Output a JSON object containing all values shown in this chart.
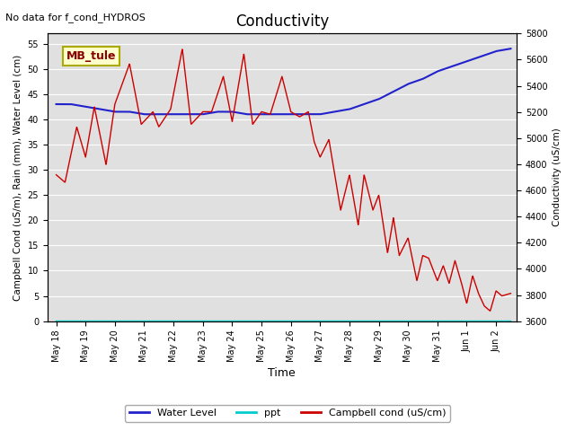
{
  "title": "Conductivity",
  "top_left_text": "No data for f_cond_HYDROS",
  "xlabel": "Time",
  "ylabel_left": "Campbell Cond (uS/m), Rain (mm), Water Level (cm)",
  "ylabel_right": "Conductivity (uS/cm)",
  "ylim_left": [
    0,
    57
  ],
  "ylim_right": [
    3600,
    5800
  ],
  "yticks_left": [
    0,
    5,
    10,
    15,
    20,
    25,
    30,
    35,
    40,
    45,
    50,
    55
  ],
  "yticks_right": [
    3600,
    3800,
    4000,
    4200,
    4400,
    4600,
    4800,
    5000,
    5200,
    5400,
    5600,
    5800
  ],
  "bg_color": "#e8e8e8",
  "legend_items": [
    "Water Level",
    "ppt",
    "Campbell cond (uS/cm)"
  ],
  "water_level_color": "#2222cc",
  "campbell_color": "#cc0000",
  "ppt_color": "#00cccc",
  "annotation_text": "MB_tule",
  "annotation_facecolor": "#ffffcc",
  "annotation_edgecolor": "#aaaa00",
  "annotation_textcolor": "#880000",
  "grid_color": "#ffffff",
  "fig_facecolor": "#ffffff",
  "ax_facecolor": "#e0e0e0",
  "title_fontsize": 12,
  "label_fontsize": 7.5,
  "tick_fontsize": 7,
  "legend_fontsize": 8,
  "day_labels": [
    "May 18",
    "May 19",
    "May 20",
    "May 21",
    "May 22",
    "May 23",
    "May 24",
    "May 25",
    "May 26",
    "May 27",
    "May 28",
    "May 29",
    "May 30",
    "May 31",
    "Jun 1",
    "Jun 2"
  ],
  "campbell_keypoints_t": [
    0.0,
    0.3,
    0.7,
    1.0,
    1.3,
    1.7,
    2.0,
    2.5,
    2.9,
    3.3,
    3.5,
    3.9,
    4.3,
    4.6,
    5.0,
    5.3,
    5.7,
    6.0,
    6.4,
    6.7,
    7.0,
    7.3,
    7.7,
    8.0,
    8.3,
    8.6,
    8.8,
    9.0,
    9.3,
    9.7,
    10.0,
    10.3,
    10.5,
    10.8,
    11.0,
    11.3,
    11.5,
    11.7,
    12.0,
    12.3,
    12.5,
    12.7,
    13.0,
    13.2,
    13.4,
    13.6,
    13.8,
    14.0,
    14.2,
    14.4,
    14.6,
    14.8,
    15.0,
    15.2,
    15.5
  ],
  "campbell_keypoints_v": [
    29.0,
    27.5,
    38.5,
    32.5,
    42.5,
    31.0,
    43.0,
    51.0,
    39.0,
    41.5,
    38.5,
    42.0,
    54.0,
    39.0,
    41.5,
    41.5,
    48.5,
    39.5,
    53.0,
    39.0,
    41.5,
    41.0,
    48.5,
    41.5,
    40.5,
    41.5,
    35.5,
    32.5,
    36.0,
    22.0,
    29.0,
    19.0,
    29.0,
    22.0,
    25.0,
    13.5,
    20.5,
    13.0,
    16.5,
    8.0,
    13.0,
    12.5,
    8.0,
    11.0,
    7.5,
    12.0,
    8.0,
    3.5,
    9.0,
    5.5,
    3.0,
    2.0,
    6.0,
    5.0,
    5.5
  ],
  "water_keypoints_t": [
    0.0,
    0.5,
    1.0,
    1.5,
    2.0,
    2.5,
    3.0,
    3.5,
    4.0,
    4.5,
    5.0,
    5.5,
    6.0,
    6.5,
    7.0,
    7.5,
    8.0,
    8.5,
    9.0,
    9.5,
    10.0,
    10.5,
    11.0,
    11.5,
    12.0,
    12.5,
    13.0,
    13.5,
    14.0,
    14.5,
    15.0,
    15.5
  ],
  "water_keypoints_v": [
    43.0,
    43.0,
    42.5,
    42.0,
    41.5,
    41.5,
    41.0,
    41.0,
    41.0,
    41.0,
    41.0,
    41.5,
    41.5,
    41.0,
    41.0,
    41.0,
    41.0,
    41.0,
    41.0,
    41.5,
    42.0,
    43.0,
    44.0,
    45.5,
    47.0,
    48.0,
    49.5,
    50.5,
    51.5,
    52.5,
    53.5,
    54.0
  ]
}
